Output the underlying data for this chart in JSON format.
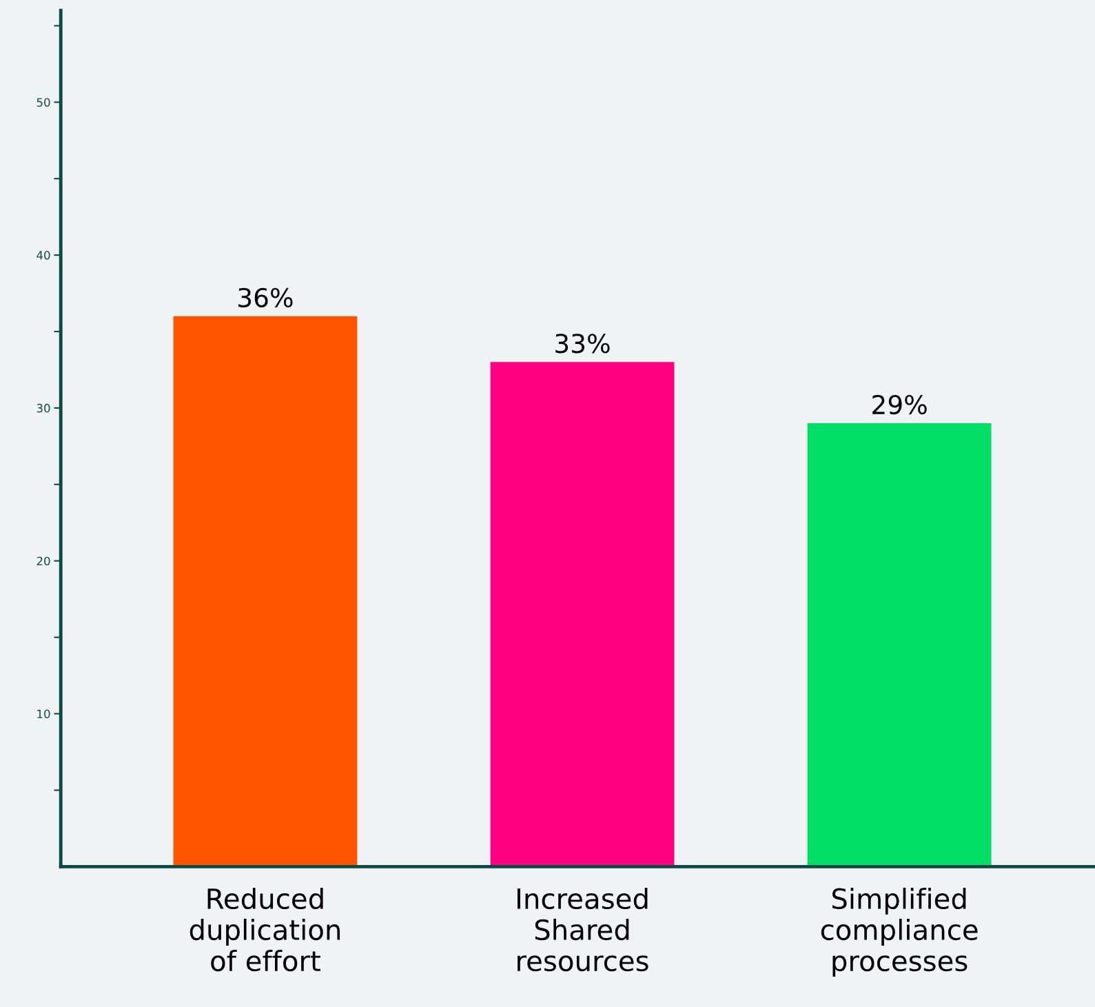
{
  "chart_data": {
    "type": "bar",
    "categories": [
      "Reduced\nduplication\nof effort",
      "Increased\nShared\nresources",
      "Simplified\ncompliance\nprocesses"
    ],
    "values": [
      36,
      33,
      29
    ],
    "colors": [
      "#ff5500",
      "#ff0080",
      "#00de68"
    ],
    "value_labels": [
      "36%",
      "33%",
      "29%"
    ],
    "ylim": [
      0,
      56
    ],
    "yticks": [
      {
        "value": 5,
        "label": null
      },
      10,
      {
        "value": 15,
        "label": null
      },
      20,
      {
        "value": 25,
        "label": null
      },
      30,
      {
        "value": 35,
        "label": null
      },
      40,
      {
        "value": 45,
        "label": null
      },
      50,
      {
        "value": 55,
        "label": null
      }
    ],
    "grid": false,
    "legend": false
  }
}
